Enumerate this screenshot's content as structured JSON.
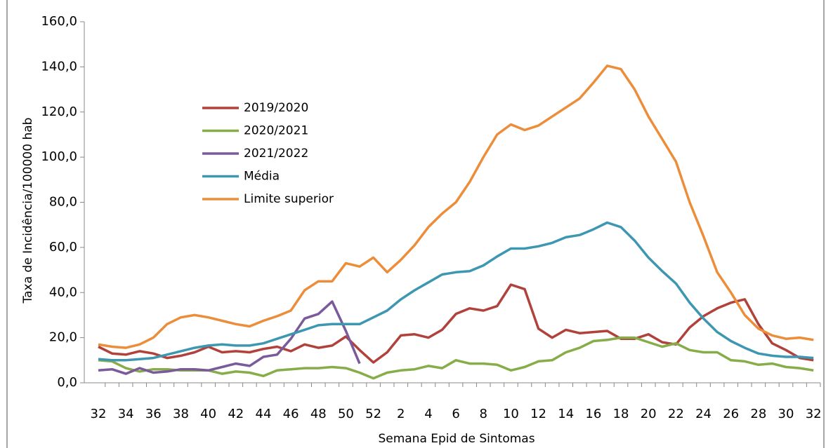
{
  "chart_data": {
    "type": "line",
    "y_label": "Taxa de Incidência/100000 hab",
    "x_label": "Semana Epid de Sintomas",
    "categories": [
      "32",
      null,
      "34",
      null,
      "36",
      null,
      "38",
      null,
      "40",
      null,
      "42",
      null,
      "44",
      null,
      "46",
      null,
      "48",
      null,
      "50",
      null,
      "52",
      null,
      "2",
      null,
      "4",
      null,
      "6",
      null,
      "8",
      null,
      "10",
      null,
      "12",
      null,
      "14",
      null,
      "16",
      null,
      "18",
      null,
      "20",
      null,
      "22",
      null,
      "24",
      null,
      "26",
      null,
      "28",
      null,
      "30",
      null,
      "32"
    ],
    "ylim": [
      0,
      160
    ],
    "yticks": [
      {
        "value": 0,
        "label": "0,0"
      },
      {
        "value": 20,
        "label": "20,0"
      },
      {
        "value": 40,
        "label": "40,0"
      },
      {
        "value": 60,
        "label": "60,0"
      },
      {
        "value": 80,
        "label": "80,0"
      },
      {
        "value": 100,
        "label": "100,0"
      },
      {
        "value": 120,
        "label": "120,0"
      },
      {
        "value": 140,
        "label": "140,0"
      },
      {
        "value": 160,
        "label": "160,0"
      }
    ],
    "series": [
      {
        "name": "2019/2020",
        "color": "#b1423b",
        "values": [
          16,
          13,
          12.5,
          14,
          13,
          11,
          12,
          13.5,
          16,
          13.5,
          14,
          13.5,
          15,
          16,
          14,
          17,
          15.5,
          16.5,
          20.5,
          14.5,
          9,
          13.5,
          21,
          21.5,
          20,
          23.5,
          30.5,
          33,
          32,
          34,
          43.5,
          41.5,
          24,
          20,
          23.5,
          22,
          22.5,
          23,
          19.5,
          19.5,
          21.5,
          18,
          17,
          24.5,
          29.5,
          33,
          35.5,
          37,
          26,
          17.5,
          14.5,
          11,
          10
        ]
      },
      {
        "name": "2020/2021",
        "color": "#86ad48",
        "values": [
          10,
          9.5,
          6.5,
          5,
          6,
          6,
          5.5,
          5.5,
          5.5,
          4,
          5,
          4.5,
          3,
          5.5,
          6,
          6.5,
          6.5,
          7,
          6.5,
          4.5,
          2,
          4.5,
          5.5,
          6,
          7.5,
          6.5,
          10,
          8.5,
          8.5,
          8,
          5.5,
          7,
          9.5,
          10,
          13.5,
          15.5,
          18.5,
          19,
          20,
          20,
          18,
          16,
          17.5,
          14.5,
          13.5,
          13.5,
          10,
          9.5,
          8,
          8.5,
          7,
          6.5,
          5.5
        ]
      },
      {
        "name": "2021/2022",
        "color": "#7a5a9a",
        "values": [
          5.5,
          6,
          4,
          6.5,
          4.5,
          5,
          6,
          6,
          5.5,
          7,
          8.5,
          7.5,
          11.5,
          12.5,
          19.5,
          28.5,
          30.5,
          36,
          23,
          8.5,
          null,
          null,
          null,
          null,
          null,
          null,
          null,
          null,
          null,
          null,
          null,
          null,
          null,
          null,
          null,
          null,
          null,
          null,
          null,
          null,
          null,
          null,
          null,
          null,
          null,
          null,
          null,
          null,
          null,
          null,
          null,
          null,
          null
        ]
      },
      {
        "name": "Média",
        "color": "#3d97b1",
        "values": [
          10.5,
          10,
          10,
          10.5,
          11,
          12.5,
          14,
          15.5,
          16.5,
          17,
          16.5,
          16.5,
          17.5,
          19.5,
          21.5,
          23.5,
          25.5,
          26,
          26,
          26,
          29,
          32,
          37,
          41,
          44.5,
          48,
          49,
          49.5,
          52,
          56,
          59.5,
          59.5,
          60.5,
          62,
          64.5,
          65.5,
          68,
          71,
          69,
          63,
          55.5,
          49.5,
          44,
          35.5,
          28.5,
          22.5,
          18.5,
          15.5,
          13,
          12,
          11.5,
          11.5,
          11
        ]
      },
      {
        "name": "Limite superior",
        "color": "#ec8d3a",
        "values": [
          17,
          16,
          15.5,
          17,
          20,
          26,
          29,
          30,
          29,
          27.5,
          26,
          25,
          27.5,
          29.5,
          32,
          41,
          45,
          45,
          53,
          51.5,
          55.5,
          49,
          54.5,
          61,
          69,
          75,
          80,
          89,
          100,
          110,
          114.5,
          112,
          114,
          118,
          122,
          126,
          133,
          140.5,
          139,
          130,
          118,
          108,
          98,
          80,
          65,
          49,
          40,
          30,
          24,
          21,
          19.5,
          20,
          19
        ]
      }
    ]
  }
}
